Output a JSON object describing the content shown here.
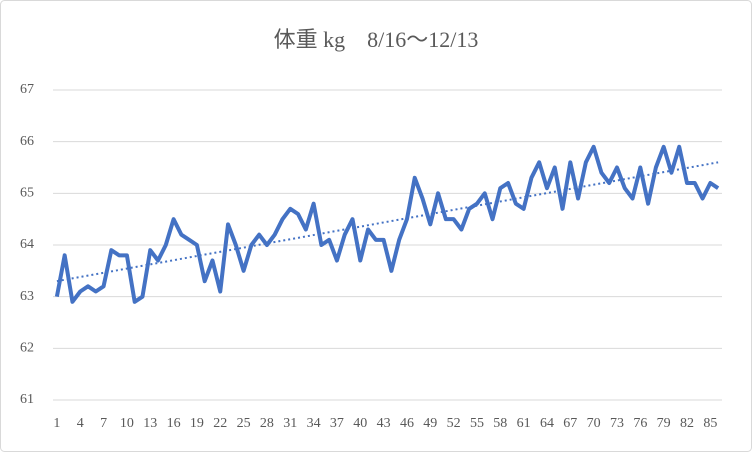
{
  "chart_data": {
    "type": "line",
    "title": "体重 kg　8/16～12/13",
    "categories": [
      1,
      null,
      null,
      4,
      null,
      null,
      7,
      null,
      null,
      10,
      null,
      null,
      13,
      null,
      null,
      16,
      null,
      null,
      19,
      null,
      null,
      22,
      null,
      null,
      25,
      null,
      null,
      28,
      null,
      null,
      31,
      null,
      null,
      34,
      null,
      null,
      37,
      null,
      null,
      40,
      null,
      null,
      43,
      null,
      null,
      46,
      null,
      null,
      49,
      null,
      null,
      52,
      null,
      null,
      55,
      null,
      null,
      58,
      null,
      null,
      61,
      null,
      null,
      64,
      null,
      null,
      67,
      null,
      null,
      70,
      null,
      null,
      73,
      null,
      null,
      76,
      null,
      null,
      79,
      null,
      null,
      82,
      null,
      null,
      85,
      null
    ],
    "series": [
      {
        "color": "#4472c4",
        "values": [
          63.0,
          63.8,
          62.9,
          63.1,
          63.2,
          63.1,
          63.2,
          63.9,
          63.8,
          63.8,
          62.9,
          63.0,
          63.9,
          63.7,
          64.0,
          64.5,
          64.2,
          64.1,
          64.0,
          63.3,
          63.7,
          63.1,
          64.4,
          64.0,
          63.5,
          64.0,
          64.2,
          64.0,
          64.2,
          64.5,
          64.7,
          64.6,
          64.3,
          64.8,
          64.0,
          64.1,
          63.7,
          64.2,
          64.5,
          63.7,
          64.3,
          64.1,
          64.1,
          63.5,
          64.1,
          64.5,
          65.3,
          64.9,
          64.4,
          65.0,
          64.5,
          64.5,
          64.3,
          64.7,
          64.8,
          65.0,
          64.5,
          65.1,
          65.2,
          64.8,
          64.7,
          65.3,
          65.6,
          65.1,
          65.5,
          64.7,
          65.6,
          64.9,
          65.6,
          65.9,
          65.4,
          65.2,
          65.5,
          65.1,
          64.9,
          65.5,
          64.8,
          65.5,
          65.9,
          65.4,
          65.9,
          65.2,
          65.2,
          64.9,
          65.2,
          65.1
        ]
      }
    ],
    "trendline": {
      "color": "#4472c4",
      "values": [
        63.3,
        65.6
      ]
    },
    "ylim": [
      61,
      67
    ],
    "yticks": [
      61,
      62,
      63,
      64,
      65,
      66,
      67
    ],
    "grid": true
  }
}
